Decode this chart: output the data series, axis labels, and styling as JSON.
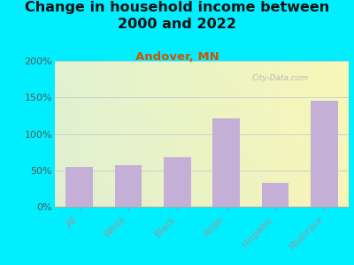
{
  "title": "Change in household income between\n2000 and 2022",
  "subtitle": "Andover, MN",
  "categories": [
    "All",
    "White",
    "Black",
    "Asian",
    "Hispanic",
    "Multirace"
  ],
  "values": [
    54,
    57,
    68,
    121,
    33,
    146
  ],
  "bar_color": "#c4afd6",
  "background_outer": "#00eeff",
  "background_inner": "#e8f5e2",
  "title_fontsize": 11.5,
  "subtitle_fontsize": 9.5,
  "subtitle_color": "#cc5500",
  "tick_color": "#555555",
  "ylim": [
    0,
    200
  ],
  "yticks": [
    0,
    50,
    100,
    150,
    200
  ],
  "watermark": "City-Data.com",
  "grid_color": "#cccccc"
}
